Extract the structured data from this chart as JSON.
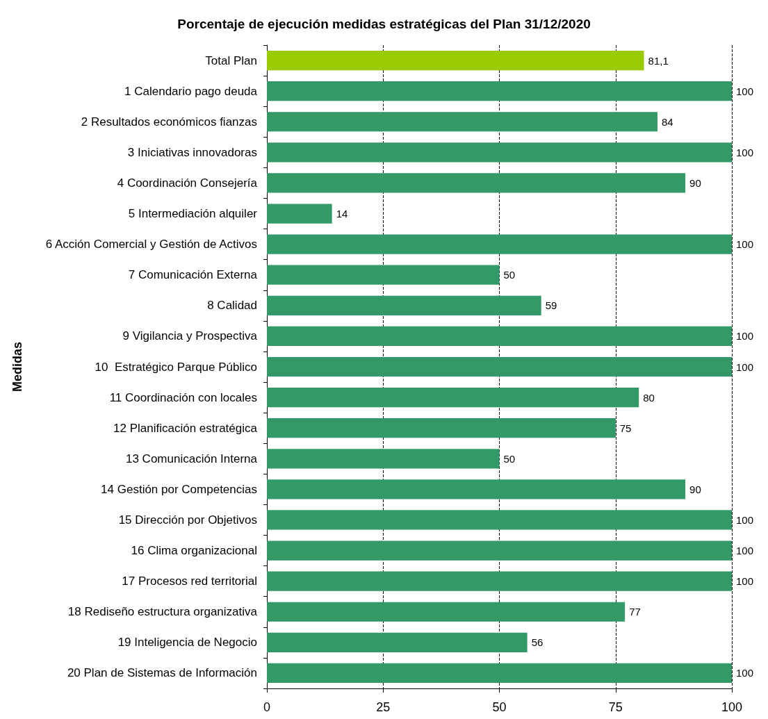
{
  "chart_data": {
    "type": "bar",
    "orientation": "horizontal",
    "title": "Porcentaje de ejecución medidas estratégicas del Plan 31/12/2020",
    "ylabel": "Medidas",
    "categories": [
      "Total Plan",
      "1 Calendario pago deuda",
      "2 Resultados económicos fianzas",
      "3 Iniciativas innovadoras",
      "4 Coordinación Consejería",
      "5 Intermediación alquiler",
      "6 Acción Comercial y Gestión de Activos",
      "7 Comunicación Externa",
      "8 Calidad",
      "9 Vigilancia y Prospectiva",
      "10  Estratégico Parque Público",
      "11 Coordinación con locales",
      "12 Planificación estratégica",
      "13 Comunicación Interna",
      "14 Gestión por Competencias",
      "15 Dirección por Objetivos",
      "16 Clima organizacional",
      "17 Procesos red territorial",
      "18 Rediseño estructura organizativa",
      "19 Inteligencia de Negocio",
      "20 Plan de Sistemas de Información"
    ],
    "values": [
      81.1,
      100,
      84,
      100,
      90,
      14,
      100,
      50,
      59,
      100,
      100,
      80,
      75,
      50,
      90,
      100,
      100,
      100,
      77,
      56,
      100
    ],
    "value_labels": [
      "81,1",
      "100",
      "84",
      "100",
      "90",
      "14",
      "100",
      "50",
      "59",
      "100",
      "100",
      "80",
      "75",
      "50",
      "90",
      "100",
      "100",
      "100",
      "77",
      "56",
      "100"
    ],
    "colors": [
      "#99cc00",
      "#339966",
      "#339966",
      "#339966",
      "#339966",
      "#339966",
      "#339966",
      "#339966",
      "#339966",
      "#339966",
      "#339966",
      "#339966",
      "#339966",
      "#339966",
      "#339966",
      "#339966",
      "#339966",
      "#339966",
      "#339966",
      "#339966",
      "#339966"
    ],
    "xlim": [
      0,
      100
    ],
    "xticks": [
      0,
      25,
      50,
      75,
      100
    ],
    "grid": "x",
    "line_style": "dashed"
  }
}
